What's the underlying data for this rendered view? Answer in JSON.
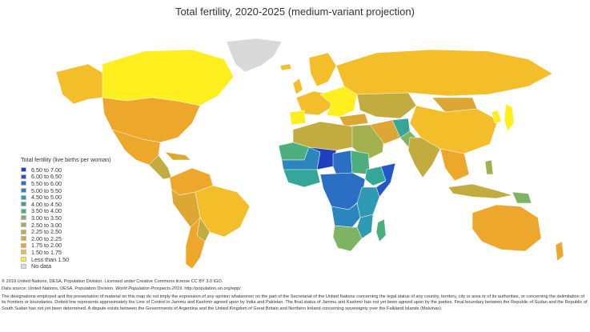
{
  "title": "Total fertility, 2020-2025 (medium-variant projection)",
  "legend": {
    "title": "Total fertility (live births per woman)",
    "items": [
      {
        "label": "6.50 to 7.00",
        "color": "#1f3fbf"
      },
      {
        "label": "6.00 to 6.50",
        "color": "#2457c6"
      },
      {
        "label": "5.50 to 6.00",
        "color": "#2a6fc4"
      },
      {
        "label": "5.00 to 5.50",
        "color": "#2b86be"
      },
      {
        "label": "4.50 to 5.00",
        "color": "#2e9ab3"
      },
      {
        "label": "4.00 to 4.50",
        "color": "#34a79a"
      },
      {
        "label": "3.50 to 4.00",
        "color": "#4fae7e"
      },
      {
        "label": "3.00 to 3.50",
        "color": "#7fb462"
      },
      {
        "label": "2.50 to 3.00",
        "color": "#a3b04f"
      },
      {
        "label": "2.25 to 2.50",
        "color": "#c2ab3f"
      },
      {
        "label": "2.00 to 2.25",
        "color": "#dca733"
      },
      {
        "label": "1.75 to 2.00",
        "color": "#eda82c"
      },
      {
        "label": "1.50 to 1.75",
        "color": "#f4bd2a"
      },
      {
        "label": "Less than 1.50",
        "color": "#ffef1f"
      },
      {
        "label": "No data",
        "color": "#d9d9d9"
      }
    ]
  },
  "footer": {
    "copyright": "© 2019 United Nations, DESA, Population Division. Licensed under Creative Commons license CC BY 3.0 IGO.",
    "source_prefix": "Data source: United Nations, DESA, Population Division.",
    "source_title": "World Population Prospects 2019.",
    "source_url": "http://population.un.org/wpp/",
    "disclaimer": "The designations employed and the presentation of material on this map do not imply the expression of any opinion whatsoever on the part of the Secretariat of the United Nations concerning the legal status of any country, territory, city or area or of its authorities, or concerning the delimitation of its frontiers or boundaries. Dotted line represents approximately the Line of Control in Jammu and Kashmir agreed upon by India and Pakistan. The final status of Jammu and Kashmir has not yet been agreed upon by the parties. Final boundary between the Republic of Sudan and the Republic of South Sudan has not yet been determined. A dispute exists between the Governments of Argentina and the United Kingdom of Great Britain and Northern Ireland concerning sovereignty over the Falkland Islands (Malvinas)."
  }
}
